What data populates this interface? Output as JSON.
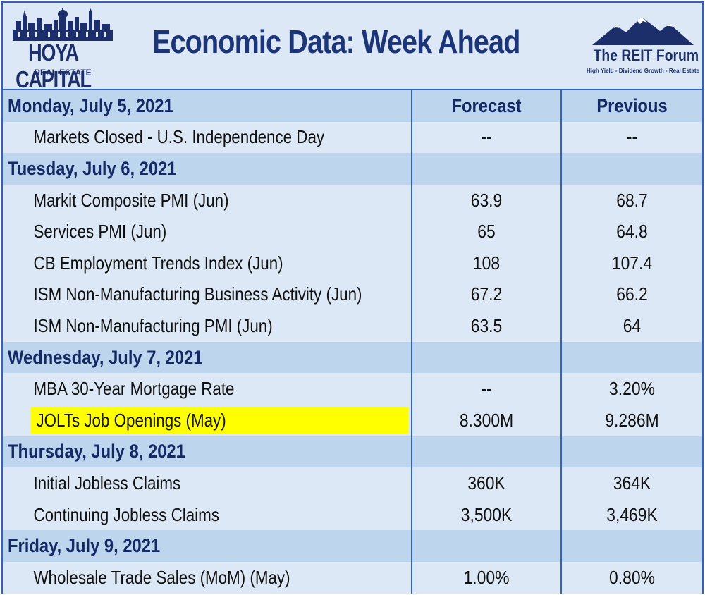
{
  "header": {
    "title": "Economic Data: Week Ahead",
    "left_logo": {
      "name": "HOYA CAPITAL",
      "subtitle": "REAL ESTATE"
    },
    "right_logo": {
      "name": "The REIT Forum",
      "tagline": "High Yield - Dividend Growth - Real Estate"
    }
  },
  "table": {
    "columns": [
      "Forecast",
      "Previous"
    ],
    "days": [
      {
        "label": "Monday, July 5, 2021",
        "items": [
          {
            "name": "Markets Closed - U.S. Independence Day",
            "forecast": "--",
            "previous": "--"
          }
        ]
      },
      {
        "label": "Tuesday, July 6, 2021",
        "items": [
          {
            "name": "Markit Composite PMI (Jun)",
            "forecast": "63.9",
            "previous": "68.7"
          },
          {
            "name": "Services PMI (Jun)",
            "forecast": "65",
            "previous": "64.8"
          },
          {
            "name": "CB Employment Trends Index (Jun)",
            "forecast": "108",
            "previous": "107.4"
          },
          {
            "name": "ISM Non-Manufacturing Business Activity (Jun)",
            "forecast": "67.2",
            "previous": "66.2"
          },
          {
            "name": "ISM Non-Manufacturing PMI (Jun)",
            "forecast": "63.5",
            "previous": "64"
          }
        ]
      },
      {
        "label": "Wednesday, July 7, 2021",
        "items": [
          {
            "name": "MBA 30-Year Mortgage Rate",
            "forecast": "--",
            "previous": "3.20%"
          },
          {
            "name": "JOLTs Job Openings (May)",
            "forecast": "8.300M",
            "previous": "9.286M",
            "highlighted": true
          }
        ]
      },
      {
        "label": "Thursday, July 8, 2021",
        "items": [
          {
            "name": "Initial Jobless Claims",
            "forecast": "360K",
            "previous": "364K"
          },
          {
            "name": "Continuing Jobless Claims",
            "forecast": "3,500K",
            "previous": "3,469K"
          }
        ]
      },
      {
        "label": "Friday, July 9, 2021",
        "items": [
          {
            "name": "Wholesale Trade Sales (MoM) (May)",
            "forecast": "1.00%",
            "previous": "0.80%"
          }
        ]
      }
    ]
  },
  "colors": {
    "border": "#2f63c0",
    "day_row": "#bdd6ee",
    "item_row": "#dce8f5",
    "title_text": "#1c3578",
    "highlight": "#ffff00"
  }
}
